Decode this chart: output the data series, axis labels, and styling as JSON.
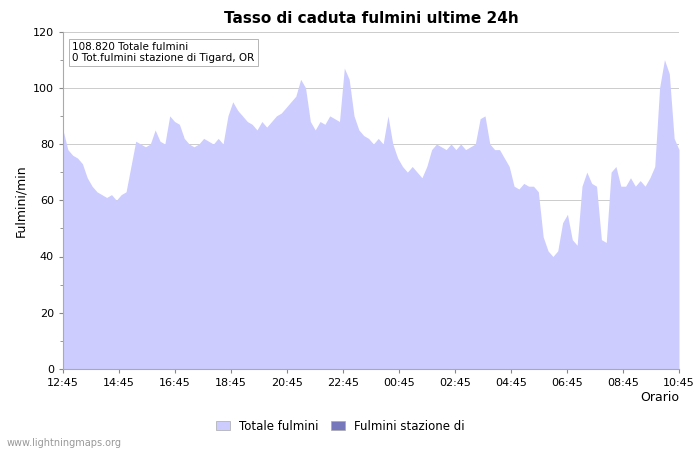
{
  "title": "Tasso di caduta fulmini ultime 24h",
  "xlabel": "Orario",
  "ylabel": "Fulmini/min",
  "annotation_line1": "108.820 Totale fulmini",
  "annotation_line2": "0 Tot.fulmini stazione di Tigard, OR",
  "x_labels": [
    "12:45",
    "14:45",
    "16:45",
    "18:45",
    "20:45",
    "22:45",
    "00:45",
    "02:45",
    "04:45",
    "06:45",
    "08:45",
    "10:45"
  ],
  "ylim": [
    0,
    120
  ],
  "yticks": [
    0,
    20,
    40,
    60,
    80,
    100,
    120
  ],
  "fill_color": "#ccccff",
  "fill_color2": "#7777bb",
  "bg_color": "#ffffff",
  "grid_color": "#cccccc",
  "legend_label1": "Totale fulmini",
  "legend_label2": "Fulmini stazione di",
  "watermark": "www.lightningmaps.org",
  "y_values": [
    85,
    78,
    76,
    75,
    73,
    68,
    65,
    63,
    62,
    61,
    62,
    60,
    62,
    63,
    72,
    81,
    80,
    79,
    80,
    85,
    81,
    80,
    90,
    88,
    87,
    82,
    80,
    79,
    80,
    82,
    81,
    80,
    82,
    80,
    90,
    95,
    92,
    90,
    88,
    87,
    85,
    88,
    86,
    88,
    90,
    91,
    93,
    95,
    97,
    103,
    100,
    88,
    85,
    88,
    87,
    90,
    89,
    88,
    107,
    103,
    90,
    85,
    83,
    82,
    80,
    82,
    80,
    90,
    80,
    75,
    72,
    70,
    72,
    70,
    68,
    72,
    78,
    80,
    79,
    78,
    80,
    78,
    80,
    78,
    79,
    80,
    89,
    90,
    80,
    78,
    78,
    75,
    72,
    65,
    64,
    66,
    65,
    65,
    63,
    47,
    42,
    40,
    42,
    52,
    55,
    46,
    44,
    65,
    70,
    66,
    65,
    46,
    45,
    70,
    72,
    65,
    65,
    68,
    65,
    67,
    65,
    68,
    72,
    100,
    110,
    105,
    82,
    78
  ]
}
